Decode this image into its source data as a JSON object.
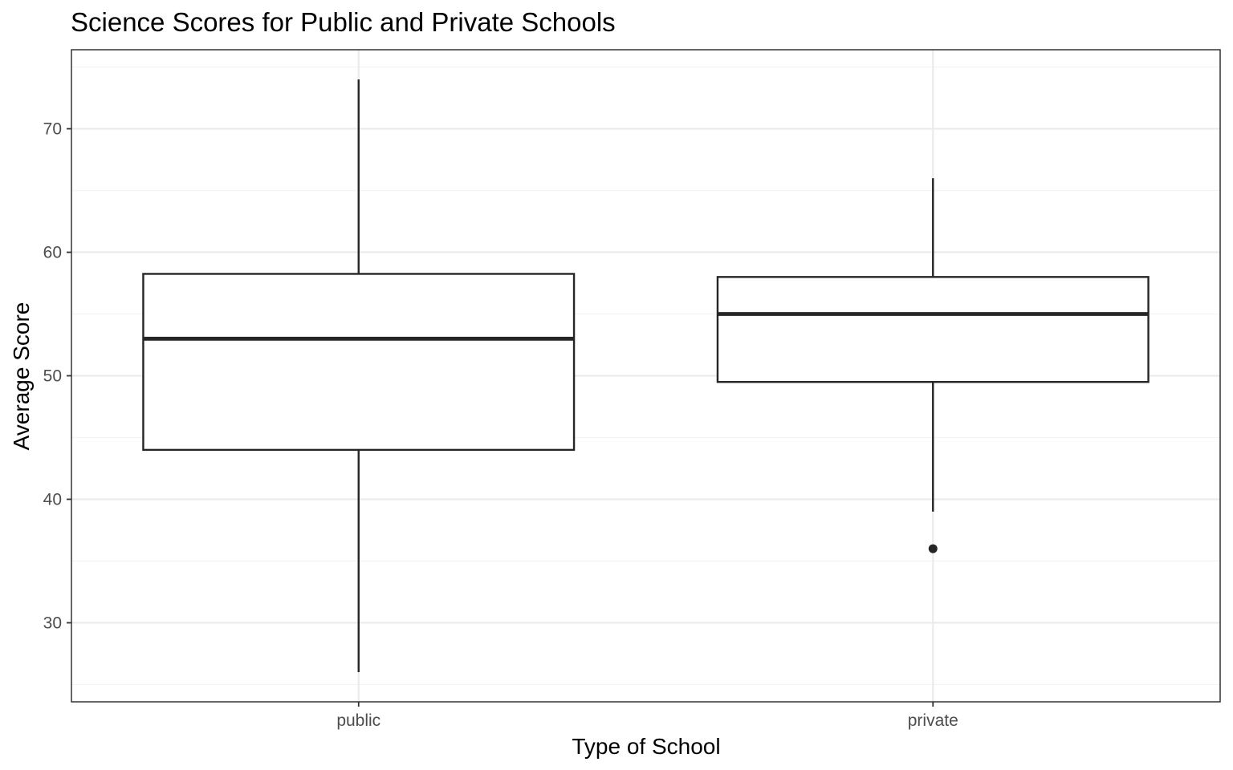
{
  "chart_data": {
    "type": "boxplot",
    "title": "Science Scores for Public and Private Schools",
    "xlabel": "Type of School",
    "ylabel": "Average Score",
    "ylim": [
      23.6,
      76.4
    ],
    "yticks": [
      30,
      40,
      50,
      60,
      70
    ],
    "y_minor_ticks": [
      25,
      35,
      45,
      55,
      65,
      75
    ],
    "grid": true,
    "categories": [
      "public",
      "private"
    ],
    "boxes": [
      {
        "category": "public",
        "whisker_low": 26,
        "q1": 44,
        "median": 53,
        "q3": 58.25,
        "whisker_high": 74,
        "outliers": []
      },
      {
        "category": "private",
        "whisker_low": 39,
        "q1": 49.5,
        "median": 55,
        "q3": 58,
        "whisker_high": 66,
        "outliers": [
          36
        ]
      }
    ],
    "colors": {
      "panel_border": "#333333",
      "box_line": "#262626",
      "box_fill": "#ffffff",
      "grid_major": "#ebebeb",
      "grid_minor": "#f3f3f3",
      "tick_label": "#4d4d4d"
    }
  }
}
